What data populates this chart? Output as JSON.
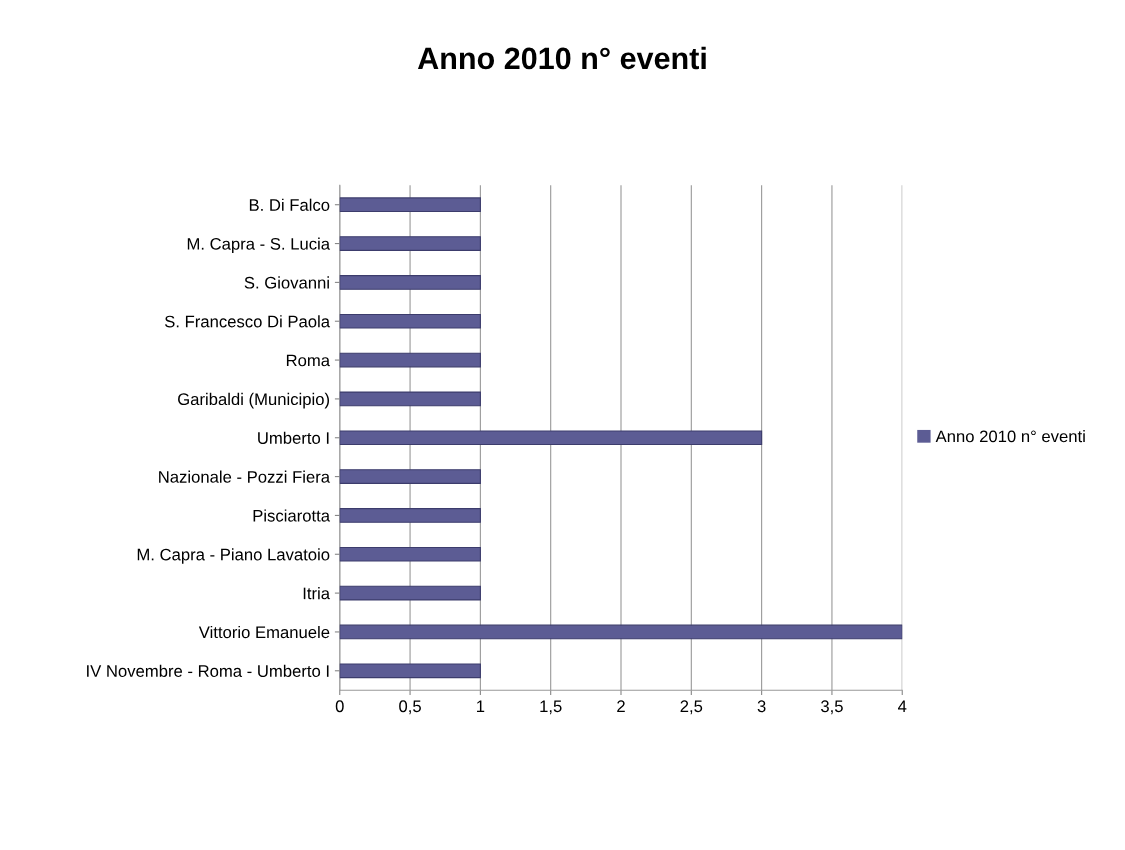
{
  "chart_data": {
    "type": "bar",
    "orientation": "horizontal",
    "title": "Anno 2010 n° eventi",
    "categories": [
      "B. Di Falco",
      "M. Capra - S. Lucia",
      "S. Giovanni",
      "S. Francesco Di Paola",
      "Roma",
      "Garibaldi (Municipio)",
      "Umberto I",
      "Nazionale - Pozzi Fiera",
      "Pisciarotta",
      "M. Capra - Piano Lavatoio",
      "Itria",
      "Vittorio Emanuele",
      "IV Novembre - Roma - Umberto I"
    ],
    "series": [
      {
        "name": "Anno 2010 n° eventi",
        "color": "#5c5c94",
        "values": [
          1,
          1,
          1,
          1,
          1,
          1,
          3,
          1,
          1,
          1,
          1,
          4,
          1
        ]
      }
    ],
    "xlim": [
      0,
      4
    ],
    "xticks": [
      0,
      {
        "value": 0.5,
        "label": "0,5"
      },
      1,
      {
        "value": 1.5,
        "label": "1,5"
      },
      2,
      {
        "value": 2.5,
        "label": "2,5"
      },
      3,
      {
        "value": 3.5,
        "label": "3,5"
      },
      4
    ],
    "grid": "x",
    "legend": "right"
  }
}
